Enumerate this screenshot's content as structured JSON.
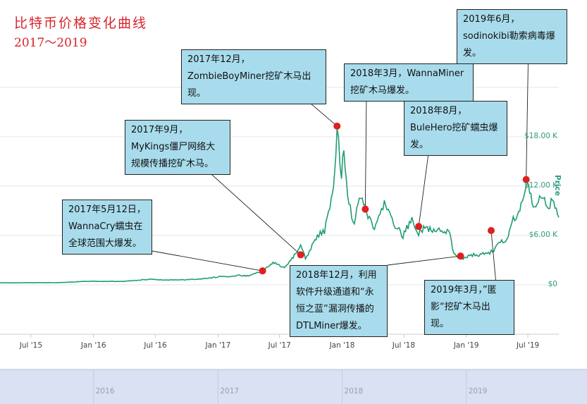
{
  "title": {
    "line1": "比特币价格变化曲线",
    "line2": "2017～2019"
  },
  "colors": {
    "line": "#1f9d72",
    "marker": "#e01f1f",
    "callout_bg": "#a8dcec",
    "title": "#d9232a"
  },
  "chart_data": {
    "type": "line",
    "ylabel": "Price",
    "ylim": [
      0,
      25000
    ],
    "yticks": [
      {
        "value": 0,
        "label": "$0"
      },
      {
        "value": 6000,
        "label": "$6.00 K"
      },
      {
        "value": 12000,
        "label": "$12.00 K"
      },
      {
        "value": 18000,
        "label": "$18.00 K"
      }
    ],
    "xlim": [
      "2015-04-01",
      "2019-09-30"
    ],
    "xticks": [
      {
        "date": "2015-07-01",
        "label": "Jul '15"
      },
      {
        "date": "2016-01-01",
        "label": "Jan '16"
      },
      {
        "date": "2016-07-01",
        "label": "Jul '16"
      },
      {
        "date": "2017-01-01",
        "label": "Jan '17"
      },
      {
        "date": "2017-07-01",
        "label": "Jul '17"
      },
      {
        "date": "2018-01-01",
        "label": "Jan '18"
      },
      {
        "date": "2018-07-01",
        "label": "Jul '18"
      },
      {
        "date": "2019-01-01",
        "label": "Jan '19"
      },
      {
        "date": "2019-07-01",
        "label": "Jul '19"
      }
    ],
    "navigator_labels": [
      {
        "date": "2016-01-01",
        "label": "2016"
      },
      {
        "date": "2017-01-01",
        "label": "2017"
      },
      {
        "date": "2018-01-01",
        "label": "2018"
      },
      {
        "date": "2019-01-01",
        "label": "2019"
      }
    ],
    "series": [
      {
        "points": [
          [
            "2015-04-01",
            250
          ],
          [
            "2015-07-01",
            260
          ],
          [
            "2015-10-01",
            270
          ],
          [
            "2015-12-01",
            420
          ],
          [
            "2016-01-01",
            430
          ],
          [
            "2016-04-01",
            430
          ],
          [
            "2016-06-15",
            680
          ],
          [
            "2016-08-01",
            580
          ],
          [
            "2016-10-01",
            620
          ],
          [
            "2016-12-01",
            780
          ],
          [
            "2017-01-05",
            1000
          ],
          [
            "2017-02-01",
            960
          ],
          [
            "2017-03-01",
            1150
          ],
          [
            "2017-04-01",
            1080
          ],
          [
            "2017-05-12",
            1700
          ],
          [
            "2017-06-01",
            2400
          ],
          [
            "2017-06-15",
            2700
          ],
          [
            "2017-07-15",
            2000
          ],
          [
            "2017-08-10",
            3400
          ],
          [
            "2017-09-01",
            4900
          ],
          [
            "2017-09-15",
            3300
          ],
          [
            "2017-10-01",
            4400
          ],
          [
            "2017-10-20",
            6000
          ],
          [
            "2017-11-10",
            6500
          ],
          [
            "2017-11-30",
            10000
          ],
          [
            "2017-12-10",
            14000
          ],
          [
            "2017-12-17",
            19300
          ],
          [
            "2017-12-30",
            13000
          ],
          [
            "2018-01-06",
            17000
          ],
          [
            "2018-01-17",
            11000
          ],
          [
            "2018-02-06",
            7000
          ],
          [
            "2018-02-20",
            11200
          ],
          [
            "2018-03-01",
            10900
          ],
          [
            "2018-03-18",
            8200
          ],
          [
            "2018-04-06",
            6700
          ],
          [
            "2018-05-05",
            9700
          ],
          [
            "2018-06-01",
            7500
          ],
          [
            "2018-06-29",
            5900
          ],
          [
            "2018-07-25",
            8200
          ],
          [
            "2018-08-14",
            6200
          ],
          [
            "2018-09-01",
            7000
          ],
          [
            "2018-10-01",
            6600
          ],
          [
            "2018-11-14",
            6300
          ],
          [
            "2018-11-25",
            3800
          ],
          [
            "2018-12-15",
            3200
          ],
          [
            "2019-01-15",
            3600
          ],
          [
            "2019-02-15",
            3700
          ],
          [
            "2019-03-15",
            4000
          ],
          [
            "2019-04-15",
            5200
          ],
          [
            "2019-05-01",
            5600
          ],
          [
            "2019-05-15",
            7900
          ],
          [
            "2019-05-31",
            8600
          ],
          [
            "2019-06-15",
            10000
          ],
          [
            "2019-06-26",
            12400
          ],
          [
            "2019-07-10",
            11300
          ],
          [
            "2019-07-17",
            9500
          ],
          [
            "2019-08-01",
            10500
          ],
          [
            "2019-08-15",
            10200
          ],
          [
            "2019-08-31",
            9600
          ],
          [
            "2019-09-15",
            10200
          ],
          [
            "2019-09-30",
            8200
          ]
        ]
      }
    ],
    "events": [
      {
        "date": "2017-05-12",
        "value": 1700,
        "text": "2017年5月12日，WannaCry蠕虫在全球范围大爆发。"
      },
      {
        "date": "2017-09-01",
        "value": 3650,
        "text": "2017年9月，MyKings僵尸网络大规模传播挖矿木马。"
      },
      {
        "date": "2017-12-17",
        "value": 19300,
        "text": "2017年12月，ZombieBoyMiner挖矿木马出现。"
      },
      {
        "date": "2018-03-10",
        "value": 9200,
        "text": "2018年3月，WannaMiner挖矿木马爆发。"
      },
      {
        "date": "2018-08-14",
        "value": 7100,
        "text": "2018年8月，BuleHero挖矿蠕虫爆发。"
      },
      {
        "date": "2018-12-15",
        "value": 3500,
        "text": "2018年12月，利用软件升级通道和“永恒之蓝”漏洞传播的DTLMiner爆发。"
      },
      {
        "date": "2019-03-15",
        "value": 6600,
        "text": "2019年3月，”匿影“挖矿木马出现。"
      },
      {
        "date": "2019-06-26",
        "value": 12800,
        "text": "2019年6月，sodinokibi勒索病毒爆发。"
      }
    ]
  }
}
